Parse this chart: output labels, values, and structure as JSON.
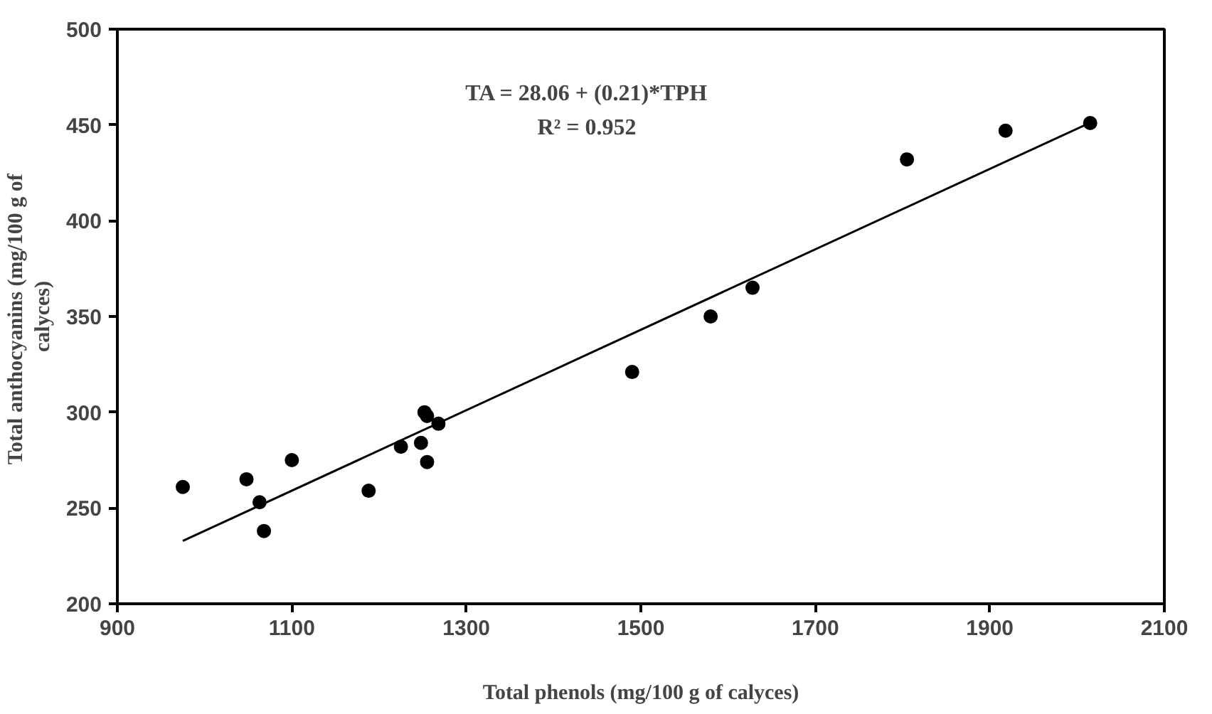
{
  "chart_data": {
    "type": "scatter",
    "xlabel": "Total phenols (mg/100 g of calyces)",
    "ylabel": "Total anthocyanins  (mg/100 g of\ncalyces)",
    "xlim": [
      900,
      2100
    ],
    "ylim": [
      200,
      500
    ],
    "xticks": [
      900,
      1100,
      1300,
      1500,
      1700,
      1900,
      2100
    ],
    "yticks": [
      200,
      250,
      300,
      350,
      400,
      450,
      500
    ],
    "grid": false,
    "annotations": [
      "TA = 28.06 + (0.21)*TPH",
      "R² = 0.952"
    ],
    "series": [
      {
        "marker": "circle",
        "color": "#000000",
        "x": [
          975,
          1048,
          1063,
          1068,
          1100,
          1188,
          1225,
          1248,
          1252,
          1255,
          1255,
          1268,
          1490,
          1580,
          1628,
          1805,
          1918,
          2015
        ],
        "values": [
          261,
          265,
          253,
          238,
          275,
          259,
          282,
          284,
          300,
          298,
          274,
          294,
          321,
          350,
          365,
          432,
          447,
          451
        ]
      },
      {
        "type": "line",
        "color": "#000000",
        "line_style": "solid",
        "x": [
          975,
          2015
        ],
        "values": [
          232.8,
          451.2
        ]
      }
    ]
  }
}
